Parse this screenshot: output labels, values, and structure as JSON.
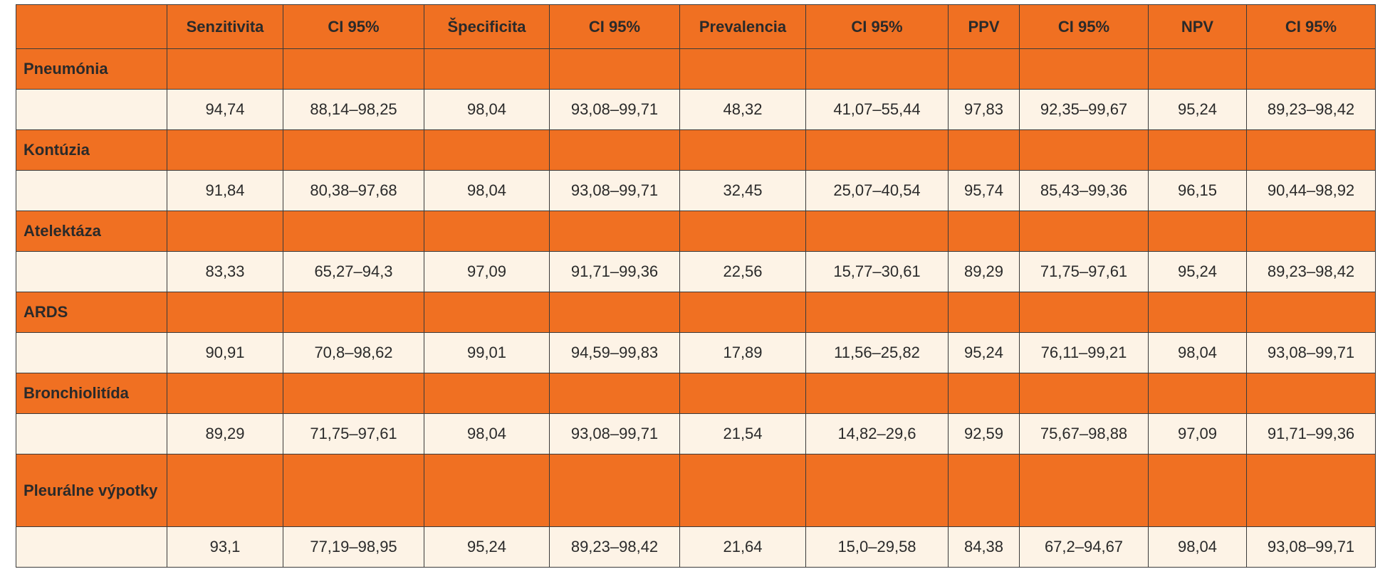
{
  "table": {
    "columns": [
      "Senzitivita",
      "CI 95%",
      "Špecificita",
      "CI 95%",
      "Prevalencia",
      "CI 95%",
      "PPV",
      "CI 95%",
      "NPV",
      "CI 95%"
    ],
    "groups": [
      {
        "label": "Pneumónia",
        "values": [
          "94,74",
          "88,14–98,25",
          "98,04",
          "93,08–99,71",
          "48,32",
          "41,07–55,44",
          "97,83",
          "92,35–99,67",
          "95,24",
          "89,23–98,42"
        ]
      },
      {
        "label": "Kontúzia",
        "values": [
          "91,84",
          "80,38–97,68",
          "98,04",
          "93,08–99,71",
          "32,45",
          "25,07–40,54",
          "95,74",
          "85,43–99,36",
          "96,15",
          "90,44–98,92"
        ]
      },
      {
        "label": "Atelektáza",
        "values": [
          "83,33",
          "65,27–94,3",
          "97,09",
          "91,71–99,36",
          "22,56",
          "15,77–30,61",
          "89,29",
          "71,75–97,61",
          "95,24",
          "89,23–98,42"
        ]
      },
      {
        "label": "ARDS",
        "values": [
          "90,91",
          "70,8–98,62",
          "99,01",
          "94,59–99,83",
          "17,89",
          "11,56–25,82",
          "95,24",
          "76,11–99,21",
          "98,04",
          "93,08–99,71"
        ]
      },
      {
        "label": "Bronchiolitída",
        "values": [
          "89,29",
          "71,75–97,61",
          "98,04",
          "93,08–99,71",
          "21,54",
          "14,82–29,6",
          "92,59",
          "75,67–98,88",
          "97,09",
          "91,71–99,36"
        ]
      },
      {
        "label": "Pleurálne výpotky",
        "values": [
          "93,1",
          "77,19–98,95",
          "95,24",
          "89,23–98,42",
          "21,64",
          "15,0–29,58",
          "84,38",
          "67,2–94,67",
          "98,04",
          "93,08–99,71"
        ]
      }
    ]
  }
}
